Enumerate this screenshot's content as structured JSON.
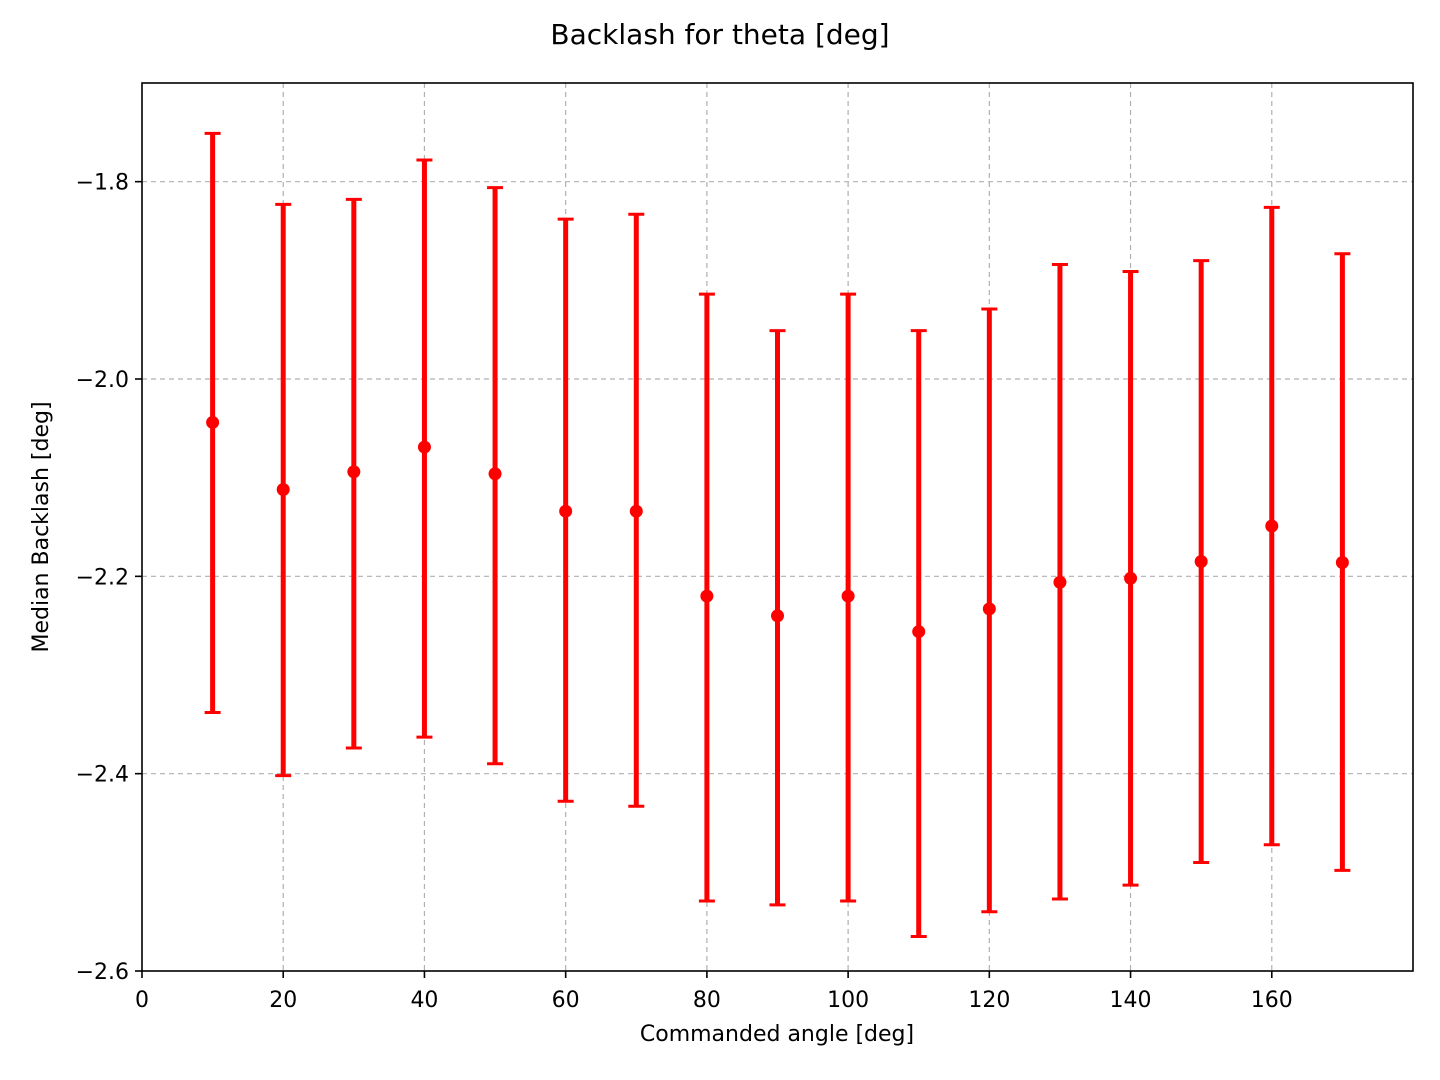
{
  "chart_data": {
    "type": "scatter",
    "subtype": "errorbar",
    "title": "Backlash for theta [deg]",
    "xlabel": "Commanded angle [deg]",
    "ylabel": "Median Backlash [deg]",
    "xlim": [
      0,
      180
    ],
    "ylim": [
      -2.6,
      -1.7
    ],
    "x_ticks": [
      0,
      20,
      40,
      60,
      80,
      100,
      120,
      140,
      160
    ],
    "y_ticks": [
      -2.6,
      -2.4,
      -2.2,
      -2.0,
      -1.8
    ],
    "x_tick_labels": [
      "0",
      "20",
      "40",
      "60",
      "80",
      "100",
      "120",
      "140",
      "160"
    ],
    "y_tick_labels": [
      "−2.6",
      "−2.4",
      "−2.2",
      "−2.0",
      "−1.8"
    ],
    "grid": true,
    "legend": "none",
    "color": "#ff0000",
    "series": [
      {
        "x": [
          10,
          20,
          30,
          40,
          50,
          60,
          70,
          80,
          90,
          100,
          110,
          120,
          130,
          140,
          150,
          160,
          170
        ],
        "y": [
          -2.044,
          -2.112,
          -2.094,
          -2.069,
          -2.096,
          -2.134,
          -2.134,
          -2.22,
          -2.24,
          -2.22,
          -2.256,
          -2.233,
          -2.206,
          -2.202,
          -2.185,
          -2.149,
          -2.186
        ],
        "y_lower": [
          -2.338,
          -2.402,
          -2.374,
          -2.363,
          -2.39,
          -2.428,
          -2.433,
          -2.529,
          -2.533,
          -2.529,
          -2.565,
          -2.54,
          -2.527,
          -2.513,
          -2.49,
          -2.472,
          -2.498
        ],
        "y_upper": [
          -1.751,
          -1.823,
          -1.818,
          -1.778,
          -1.806,
          -1.838,
          -1.833,
          -1.914,
          -1.951,
          -1.914,
          -1.951,
          -1.929,
          -1.884,
          -1.891,
          -1.88,
          -1.826,
          -1.873
        ]
      }
    ]
  }
}
